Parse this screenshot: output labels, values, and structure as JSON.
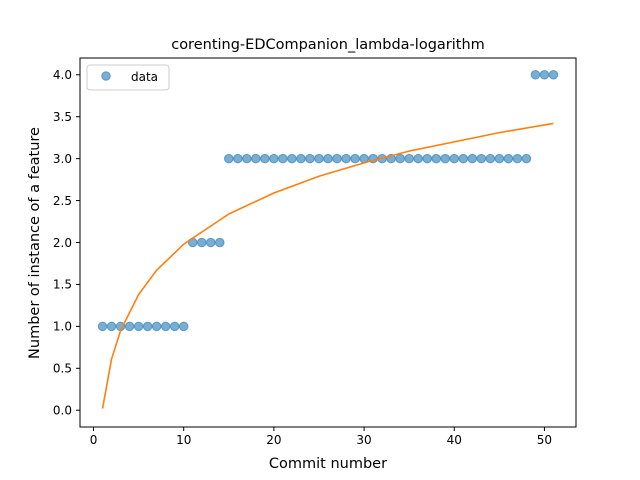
{
  "chart_data": {
    "type": "scatter",
    "title": "corenting-EDCompanion_lambda-logarithm",
    "xlabel": "Commit number",
    "ylabel": "Number of instance of a feature",
    "xlim": [
      -1.5,
      53.5
    ],
    "ylim": [
      -0.2,
      4.2
    ],
    "xticks": [
      0,
      10,
      20,
      30,
      40,
      50
    ],
    "yticks": [
      0.0,
      0.5,
      1.0,
      1.5,
      2.0,
      2.5,
      3.0,
      3.5,
      4.0
    ],
    "xtick_labels": [
      "0",
      "10",
      "20",
      "30",
      "40",
      "50"
    ],
    "ytick_labels": [
      "0.0",
      "0.5",
      "1.0",
      "1.5",
      "2.0",
      "2.5",
      "3.0",
      "3.5",
      "4.0"
    ],
    "legend": {
      "placement": "upper-left",
      "entries": [
        "data"
      ]
    },
    "grid": false,
    "colors": {
      "data": "#1f77b4",
      "fit": "#ff7f0e"
    },
    "series": [
      {
        "name": "data",
        "kind": "scatter",
        "x": [
          1,
          2,
          3,
          4,
          5,
          6,
          7,
          8,
          9,
          10,
          11,
          12,
          13,
          14,
          15,
          16,
          17,
          18,
          19,
          20,
          21,
          22,
          23,
          24,
          25,
          26,
          27,
          28,
          29,
          30,
          31,
          32,
          33,
          34,
          35,
          36,
          37,
          38,
          39,
          40,
          41,
          42,
          43,
          44,
          45,
          46,
          47,
          48,
          49,
          50,
          51
        ],
        "y": [
          1,
          1,
          1,
          1,
          1,
          1,
          1,
          1,
          1,
          1,
          2,
          2,
          2,
          2,
          3,
          3,
          3,
          3,
          3,
          3,
          3,
          3,
          3,
          3,
          3,
          3,
          3,
          3,
          3,
          3,
          3,
          3,
          3,
          3,
          3,
          3,
          3,
          3,
          3,
          3,
          3,
          3,
          3,
          3,
          3,
          3,
          3,
          3,
          4,
          4,
          4
        ]
      },
      {
        "kind": "line",
        "x": [
          1,
          2,
          3,
          5,
          7,
          10,
          15,
          20,
          25,
          30,
          35,
          40,
          45,
          51
        ],
        "y": [
          0.02,
          0.61,
          0.95,
          1.38,
          1.67,
          1.98,
          2.34,
          2.59,
          2.79,
          2.95,
          3.09,
          3.2,
          3.31,
          3.42
        ]
      }
    ]
  }
}
